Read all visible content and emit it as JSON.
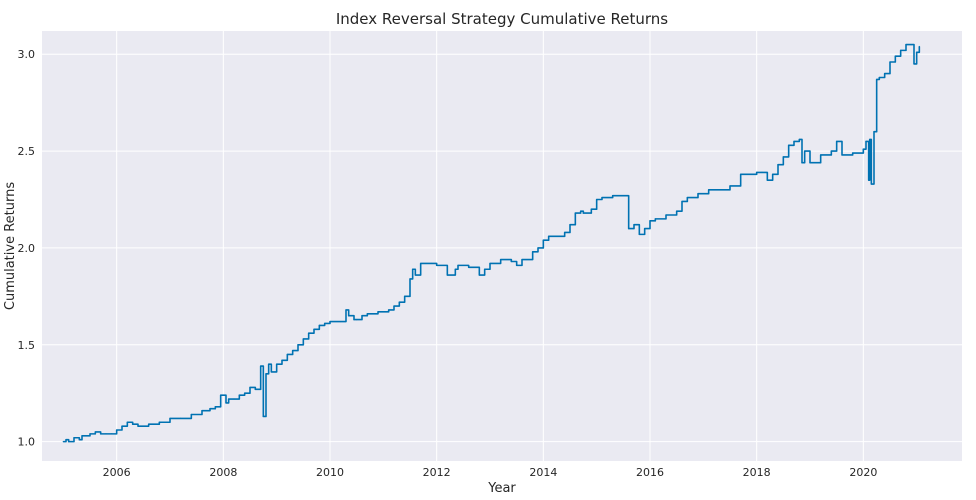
{
  "chart_data": {
    "type": "line",
    "title": "Index Reversal Strategy Cumulative Returns",
    "xlabel": "Year",
    "ylabel": "Cumulative Returns",
    "xlim": [
      2004.6,
      2021.85
    ],
    "ylim": [
      0.9,
      3.12
    ],
    "xticks": [
      2006,
      2008,
      2010,
      2012,
      2014,
      2016,
      2018,
      2020
    ],
    "yticks": [
      1.0,
      1.5,
      2.0,
      2.5,
      3.0
    ],
    "ytick_labels": [
      "1.0",
      "1.5",
      "2.0",
      "2.5",
      "3.0"
    ],
    "grid": true,
    "style": "seaborn-darkgrid",
    "background_color": "#EAEAF2",
    "grid_color": "#FFFFFF",
    "line_color": "#0072B2",
    "series": [
      {
        "x": [
          2005.0,
          2005.05,
          2005.1,
          2005.2,
          2005.3,
          2005.35,
          2005.4,
          2005.5,
          2005.6,
          2005.7,
          2005.8,
          2005.9,
          2006.0,
          2006.1,
          2006.2,
          2006.3,
          2006.4,
          2006.5,
          2006.6,
          2006.8,
          2007.0,
          2007.2,
          2007.4,
          2007.6,
          2007.75,
          2007.85,
          2007.95,
          2008.05,
          2008.1,
          2008.2,
          2008.3,
          2008.4,
          2008.5,
          2008.6,
          2008.7,
          2008.75,
          2008.8,
          2008.85,
          2008.9,
          2009.0,
          2009.1,
          2009.2,
          2009.3,
          2009.4,
          2009.5,
          2009.6,
          2009.7,
          2009.8,
          2009.9,
          2010.0,
          2010.2,
          2010.3,
          2010.35,
          2010.45,
          2010.5,
          2010.6,
          2010.7,
          2010.9,
          2011.1,
          2011.2,
          2011.3,
          2011.4,
          2011.5,
          2011.55,
          2011.6,
          2011.7,
          2011.8,
          2011.9,
          2012.0,
          2012.2,
          2012.35,
          2012.4,
          2012.6,
          2012.8,
          2012.9,
          2013.0,
          2013.2,
          2013.4,
          2013.5,
          2013.6,
          2013.8,
          2013.9,
          2014.0,
          2014.1,
          2014.2,
          2014.4,
          2014.5,
          2014.6,
          2014.7,
          2014.75,
          2014.9,
          2015.0,
          2015.1,
          2015.3,
          2015.5,
          2015.6,
          2015.7,
          2015.8,
          2015.9,
          2016.0,
          2016.1,
          2016.3,
          2016.5,
          2016.6,
          2016.7,
          2016.9,
          2017.1,
          2017.3,
          2017.5,
          2017.7,
          2018.0,
          2018.1,
          2018.2,
          2018.3,
          2018.4,
          2018.5,
          2018.6,
          2018.7,
          2018.8,
          2018.85,
          2018.9,
          2019.0,
          2019.2,
          2019.4,
          2019.5,
          2019.6,
          2019.8,
          2020.0,
          2020.05,
          2020.1,
          2020.12,
          2020.15,
          2020.2,
          2020.25,
          2020.3,
          2020.4,
          2020.5,
          2020.6,
          2020.7,
          2020.8,
          2020.9,
          2020.95,
          2021.0,
          2021.05
        ],
        "y": [
          1.0,
          1.01,
          1.0,
          1.02,
          1.01,
          1.03,
          1.03,
          1.04,
          1.05,
          1.04,
          1.04,
          1.04,
          1.06,
          1.08,
          1.1,
          1.09,
          1.08,
          1.08,
          1.09,
          1.1,
          1.12,
          1.12,
          1.14,
          1.16,
          1.17,
          1.18,
          1.24,
          1.2,
          1.22,
          1.22,
          1.24,
          1.25,
          1.28,
          1.27,
          1.39,
          1.13,
          1.35,
          1.4,
          1.36,
          1.4,
          1.42,
          1.45,
          1.47,
          1.5,
          1.53,
          1.56,
          1.58,
          1.6,
          1.61,
          1.62,
          1.62,
          1.68,
          1.65,
          1.63,
          1.63,
          1.65,
          1.66,
          1.67,
          1.68,
          1.7,
          1.72,
          1.75,
          1.84,
          1.89,
          1.86,
          1.92,
          1.92,
          1.92,
          1.91,
          1.86,
          1.89,
          1.91,
          1.9,
          1.86,
          1.89,
          1.92,
          1.94,
          1.93,
          1.91,
          1.94,
          1.98,
          2.0,
          2.04,
          2.06,
          2.06,
          2.08,
          2.12,
          2.18,
          2.19,
          2.18,
          2.2,
          2.25,
          2.26,
          2.27,
          2.27,
          2.1,
          2.12,
          2.07,
          2.1,
          2.14,
          2.15,
          2.17,
          2.19,
          2.24,
          2.26,
          2.28,
          2.3,
          2.3,
          2.32,
          2.38,
          2.39,
          2.39,
          2.35,
          2.38,
          2.43,
          2.47,
          2.53,
          2.55,
          2.56,
          2.44,
          2.5,
          2.44,
          2.48,
          2.5,
          2.55,
          2.48,
          2.49,
          2.51,
          2.55,
          2.35,
          2.56,
          2.33,
          2.6,
          2.87,
          2.88,
          2.9,
          2.96,
          2.99,
          3.02,
          3.05,
          3.05,
          2.95,
          3.01,
          3.04
        ]
      }
    ]
  }
}
